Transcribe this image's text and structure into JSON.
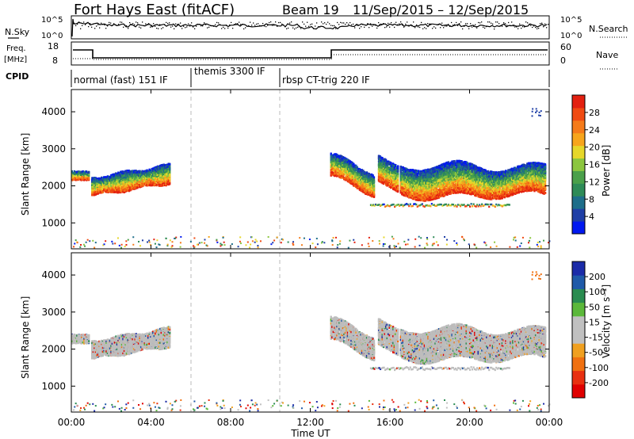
{
  "header": {
    "station": "Fort Hays East (fitACF)",
    "beam": "Beam 19",
    "dates": "11/Sep/2015 – 12/Sep/2015"
  },
  "left_labels": {
    "nsky": "N.Sky",
    "freq": "Freq.",
    "freq_unit": "[MHz]",
    "cpid": "CPID"
  },
  "right_labels": {
    "nsearch": "N.Search",
    "nave": "Nave"
  },
  "panels": {
    "noise": {
      "left_ticks": [
        "10^5",
        "10^0"
      ],
      "right_ticks": [
        "10^5",
        "10^0"
      ]
    },
    "freq": {
      "left_ticks": [
        "18",
        "8"
      ],
      "right_ticks": [
        "60",
        "0"
      ]
    },
    "cpid": {
      "segments": [
        {
          "label": "normal (fast) 151 IF",
          "start_hr": 0
        },
        {
          "label": "themis 3300 IF",
          "start_hr": 6.1
        },
        {
          "label": "rbsp CT-trig 220 IF",
          "start_hr": 10.5
        }
      ]
    }
  },
  "colors": {
    "power_scale": [
      "#0018f0",
      "#1f3fa6",
      "#1e6e8a",
      "#2e8b57",
      "#4aa04a",
      "#8cc63f",
      "#e6d72a",
      "#f7a51c",
      "#f57b1a",
      "#f04a12",
      "#e32010"
    ],
    "velocity_scale": [
      "#1b2ba8",
      "#1f5aa8",
      "#2a8c50",
      "#5bb83a",
      "#c0c0c0",
      "#c0c0c0",
      "#f0a020",
      "#f07010",
      "#e83010",
      "#e00000"
    ],
    "ground_scatter": "#bdbdbd"
  },
  "chart_data": [
    {
      "type": "heatmap",
      "name": "power",
      "xlabel": "Time UT",
      "ylabel": "Slant Range [km]",
      "xlim_hr": [
        0,
        24
      ],
      "ylim": [
        300,
        4600
      ],
      "yticks": [
        "1000",
        "2000",
        "3000",
        "4000"
      ],
      "xticks": [
        "00:00",
        "04:00",
        "08:00",
        "12:00",
        "16:00",
        "20:00",
        "00:00"
      ],
      "colorbar": {
        "label": "Power [dB]",
        "range": [
          0,
          30
        ],
        "ticks": [
          "4",
          "8",
          "12",
          "16",
          "20",
          "24",
          "28"
        ]
      }
    },
    {
      "type": "heatmap",
      "name": "velocity",
      "xlabel": "Time UT",
      "ylabel": "Slant Range [km]",
      "xlim_hr": [
        0,
        24
      ],
      "ylim": [
        300,
        4600
      ],
      "yticks": [
        "1000",
        "2000",
        "3000",
        "4000"
      ],
      "xticks": [
        "00:00",
        "04:00",
        "08:00",
        "12:00",
        "16:00",
        "20:00",
        "00:00"
      ],
      "colorbar": {
        "label": "Velocity [m s⁻¹]",
        "ticks": [
          "200",
          "100",
          "50",
          "15",
          "-15",
          "-50",
          "-100",
          "-200"
        ]
      }
    }
  ]
}
